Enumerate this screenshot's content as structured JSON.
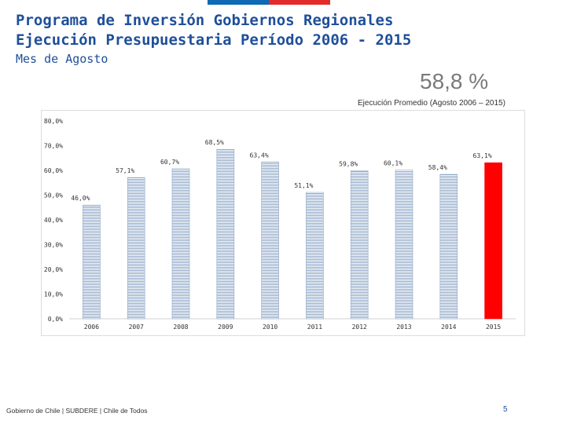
{
  "header": {
    "title_line1": "Programa de Inversión Gobiernos Regionales",
    "title_line2": "Ejecución Presupuestaria Período 2006 - 2015",
    "subtitle": "Mes de Agosto"
  },
  "highlight": {
    "value": "58,8 %",
    "caption": "Ejecución Promedio (Agosto 2006 – 2015)"
  },
  "footer": {
    "text": "Gobierno de Chile | SUBDERE | Chile de Todos",
    "page": "5"
  },
  "colors": {
    "title": "#1f4f99",
    "bar_stripe": "#8fa8c8",
    "highlight_bar": "#ff0000",
    "flag_blue": "#0f69b4",
    "flag_red": "#e22c2c"
  },
  "chart_data": {
    "type": "bar",
    "title": "",
    "xlabel": "",
    "ylabel": "",
    "categories": [
      "2006",
      "2007",
      "2008",
      "2009",
      "2010",
      "2011",
      "2012",
      "2013",
      "2014",
      "2015"
    ],
    "values": [
      46.0,
      57.1,
      60.7,
      68.5,
      63.4,
      51.1,
      59.8,
      60.1,
      58.4,
      63.1
    ],
    "value_labels": [
      "46,0%",
      "57,1%",
      "60,7%",
      "68,5%",
      "63,4%",
      "51,1%",
      "59,8%",
      "60,1%",
      "58,4%",
      "63,1%"
    ],
    "highlight_index": 9,
    "ylim": [
      0,
      80
    ],
    "yticks": [
      0,
      10,
      20,
      30,
      40,
      50,
      60,
      70,
      80
    ],
    "ytick_labels": [
      "0,0%",
      "10,0%",
      "20,0%",
      "30,0%",
      "40,0%",
      "50,0%",
      "60,0%",
      "70,0%",
      "80,0%"
    ],
    "grid": false,
    "legend": "none"
  }
}
